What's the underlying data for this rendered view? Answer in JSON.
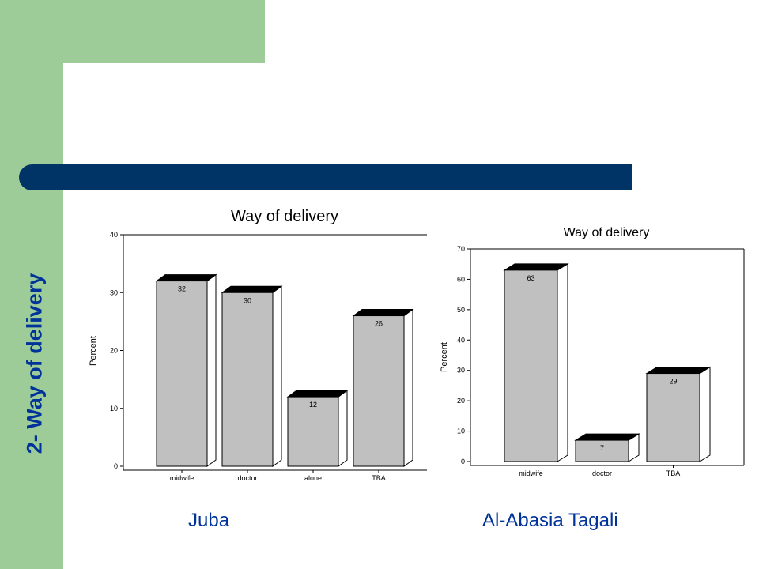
{
  "slide": {
    "side_title": "2- Way of delivery",
    "caption_left": "Juba",
    "caption_right": "Al-Abasia Tagali"
  },
  "colors": {
    "green": "#9dcc98",
    "blue_bar": "#003366",
    "title_text": "#003399",
    "bar_face": "#c0c0c0",
    "bar_top": "#000000"
  },
  "chart_data": [
    {
      "type": "bar",
      "title": "Way of delivery",
      "ylabel": "Percent",
      "xlabel": "",
      "categories": [
        "midwife",
        "doctor",
        "alone",
        "TBA"
      ],
      "values": [
        32,
        30,
        12,
        26
      ],
      "ylim": [
        0,
        40
      ],
      "yticks": [
        0,
        10,
        20,
        30,
        40
      ],
      "grid": false,
      "legend": "none"
    },
    {
      "type": "bar",
      "title": "Way of delivery",
      "ylabel": "Percent",
      "xlabel": "",
      "categories": [
        "midwife",
        "doctor",
        "TBA"
      ],
      "values": [
        63,
        7,
        29
      ],
      "ylim": [
        0,
        70
      ],
      "yticks": [
        0,
        10,
        20,
        30,
        40,
        50,
        60,
        70
      ],
      "grid": false,
      "legend": "none"
    }
  ]
}
